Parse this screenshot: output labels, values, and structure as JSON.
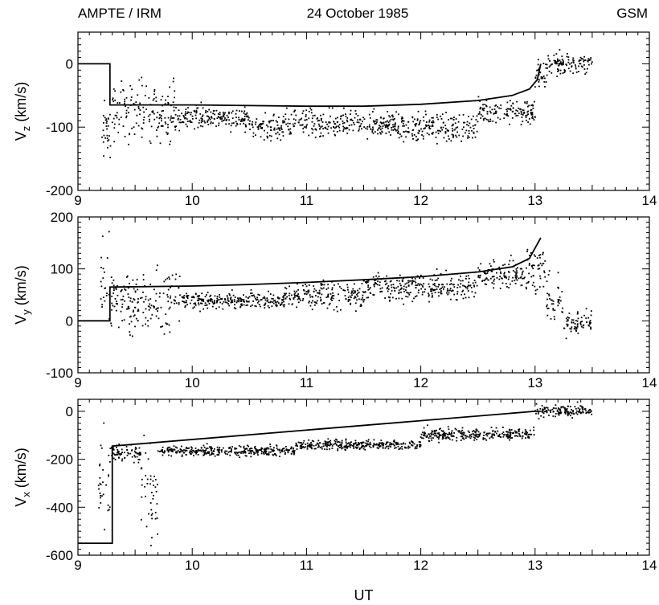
{
  "header": {
    "left": "AMPTE / IRM",
    "center": "24 October 1985",
    "right": "GSM"
  },
  "colors": {
    "ink": "#000000",
    "background": "#ffffff"
  },
  "chart_data": [
    {
      "type": "scatter",
      "panel": "top",
      "ylabel": {
        "main": "V",
        "sub": "z",
        "unit": " (km/s)"
      },
      "xlim": [
        9,
        14
      ],
      "ylim": [
        -200,
        50
      ],
      "xticks": [
        9,
        10,
        11,
        12,
        13,
        14
      ],
      "yticks": [
        -200,
        -100,
        0
      ],
      "grid": false,
      "model_line": {
        "x": [
          9.0,
          9.28,
          9.28,
          9.5,
          10.0,
          10.5,
          11.0,
          11.5,
          12.0,
          12.5,
          12.8,
          12.95,
          13.02,
          13.05
        ],
        "y": [
          0,
          0,
          -65,
          -65,
          -65,
          -66,
          -67,
          -67,
          -64,
          -58,
          -50,
          -40,
          -25,
          0
        ]
      },
      "scatter_bands": [
        {
          "x0": 9.2,
          "x1": 9.3,
          "center": -110,
          "spread": 45
        },
        {
          "x0": 9.3,
          "x1": 9.85,
          "center": -75,
          "spread": 45
        },
        {
          "x0": 9.85,
          "x1": 10.5,
          "center": -85,
          "spread": 18
        },
        {
          "x0": 10.5,
          "x1": 10.8,
          "center": -100,
          "spread": 20
        },
        {
          "x0": 10.8,
          "x1": 11.8,
          "center": -95,
          "spread": 20
        },
        {
          "x0": 11.8,
          "x1": 12.5,
          "center": -100,
          "spread": 22
        },
        {
          "x0": 12.5,
          "x1": 13.0,
          "center": -75,
          "spread": 20
        },
        {
          "x0": 13.0,
          "x1": 13.1,
          "center": -20,
          "spread": 30
        },
        {
          "x0": 13.1,
          "x1": 13.5,
          "center": 0,
          "spread": 15
        }
      ]
    },
    {
      "type": "scatter",
      "panel": "middle",
      "ylabel": {
        "main": "V",
        "sub": "y",
        "unit": " (km/s)"
      },
      "xlim": [
        9,
        14
      ],
      "ylim": [
        -100,
        200
      ],
      "xticks": [
        9,
        10,
        11,
        12,
        13,
        14
      ],
      "yticks": [
        -100,
        0,
        100,
        200
      ],
      "grid": false,
      "model_line": {
        "x": [
          9.0,
          9.28,
          9.28,
          10.0,
          10.5,
          11.0,
          11.5,
          12.0,
          12.5,
          12.8,
          12.95,
          13.05
        ],
        "y": [
          0,
          0,
          65,
          67,
          70,
          74,
          79,
          85,
          94,
          104,
          120,
          160
        ]
      },
      "scatter_bands": [
        {
          "x0": 9.2,
          "x1": 9.3,
          "center": 60,
          "spread": 80
        },
        {
          "x0": 9.3,
          "x1": 9.9,
          "center": 40,
          "spread": 55
        },
        {
          "x0": 9.9,
          "x1": 10.8,
          "center": 38,
          "spread": 15
        },
        {
          "x0": 10.8,
          "x1": 11.5,
          "center": 50,
          "spread": 25
        },
        {
          "x0": 11.5,
          "x1": 12.5,
          "center": 65,
          "spread": 25
        },
        {
          "x0": 12.5,
          "x1": 12.9,
          "center": 90,
          "spread": 25
        },
        {
          "x0": 12.9,
          "x1": 13.1,
          "center": 100,
          "spread": 50
        },
        {
          "x0": 13.1,
          "x1": 13.25,
          "center": 40,
          "spread": 50
        },
        {
          "x0": 13.25,
          "x1": 13.5,
          "center": -5,
          "spread": 25
        }
      ]
    },
    {
      "type": "scatter",
      "panel": "bottom",
      "ylabel": {
        "main": "V",
        "sub": "x",
        "unit": " (km/s)"
      },
      "xlabel": "UT",
      "xlim": [
        9,
        14
      ],
      "ylim": [
        -600,
        50
      ],
      "xticks": [
        9,
        10,
        11,
        12,
        13,
        14
      ],
      "yticks": [
        -600,
        -400,
        -200,
        0
      ],
      "grid": false,
      "model_line": {
        "x": [
          9.0,
          9.3,
          9.3,
          13.0,
          13.05
        ],
        "y": [
          -550,
          -550,
          -145,
          0,
          0
        ]
      },
      "scatter_bands": [
        {
          "x0": 9.18,
          "x1": 9.28,
          "center": -300,
          "spread": 200
        },
        {
          "x0": 9.28,
          "x1": 9.55,
          "center": -175,
          "spread": 35
        },
        {
          "x0": 9.55,
          "x1": 9.7,
          "center": -350,
          "spread": 200
        },
        {
          "x0": 9.7,
          "x1": 10.9,
          "center": -165,
          "spread": 20
        },
        {
          "x0": 10.9,
          "x1": 12.0,
          "center": -140,
          "spread": 20
        },
        {
          "x0": 12.0,
          "x1": 13.0,
          "center": -95,
          "spread": 25
        },
        {
          "x0": 13.0,
          "x1": 13.5,
          "center": 0,
          "spread": 25
        }
      ]
    }
  ]
}
